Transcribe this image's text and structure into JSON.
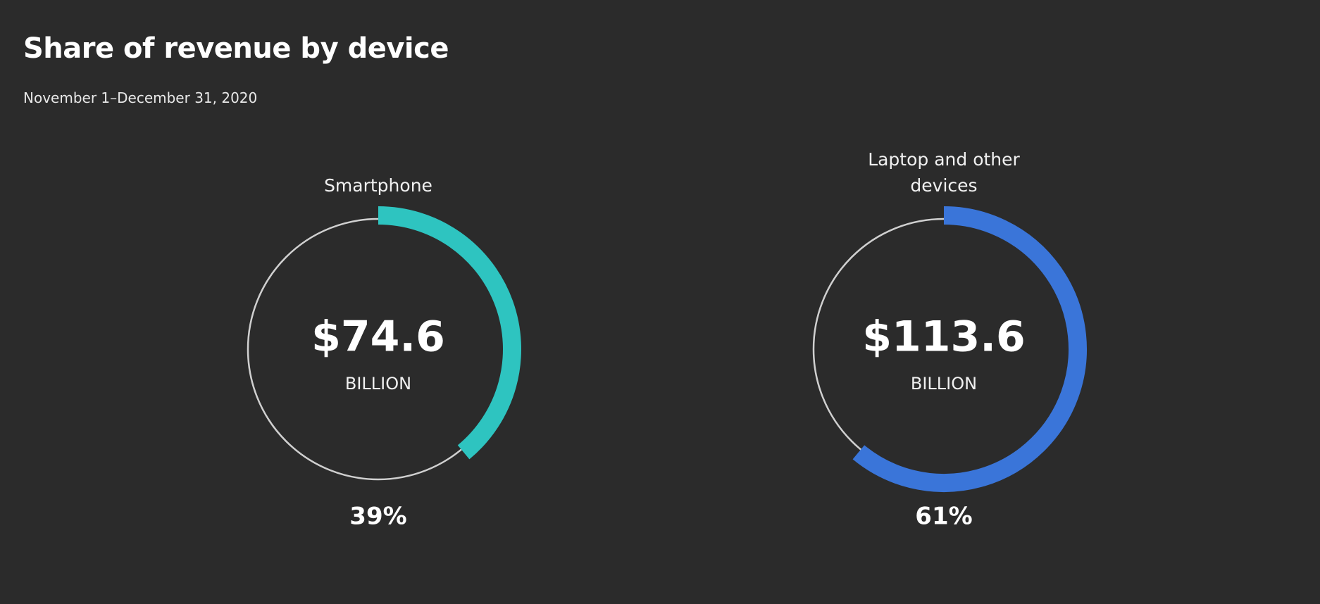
{
  "chart_data": {
    "type": "gauge",
    "title": "Share of revenue by device",
    "subtitle": "November 1–December 31, 2020",
    "categories": [
      "Smartphone",
      "Laptop and other devices"
    ],
    "values": [
      39,
      61
    ],
    "value_labels": [
      "39%",
      "61%"
    ],
    "amount_labels": [
      "$74.6",
      "$113.6"
    ],
    "unit_label": "BILLION",
    "colors": [
      "#2ec4c0",
      "#3a75d9"
    ],
    "ylim": [
      0,
      100
    ],
    "track_color": "#d0d0d0"
  }
}
